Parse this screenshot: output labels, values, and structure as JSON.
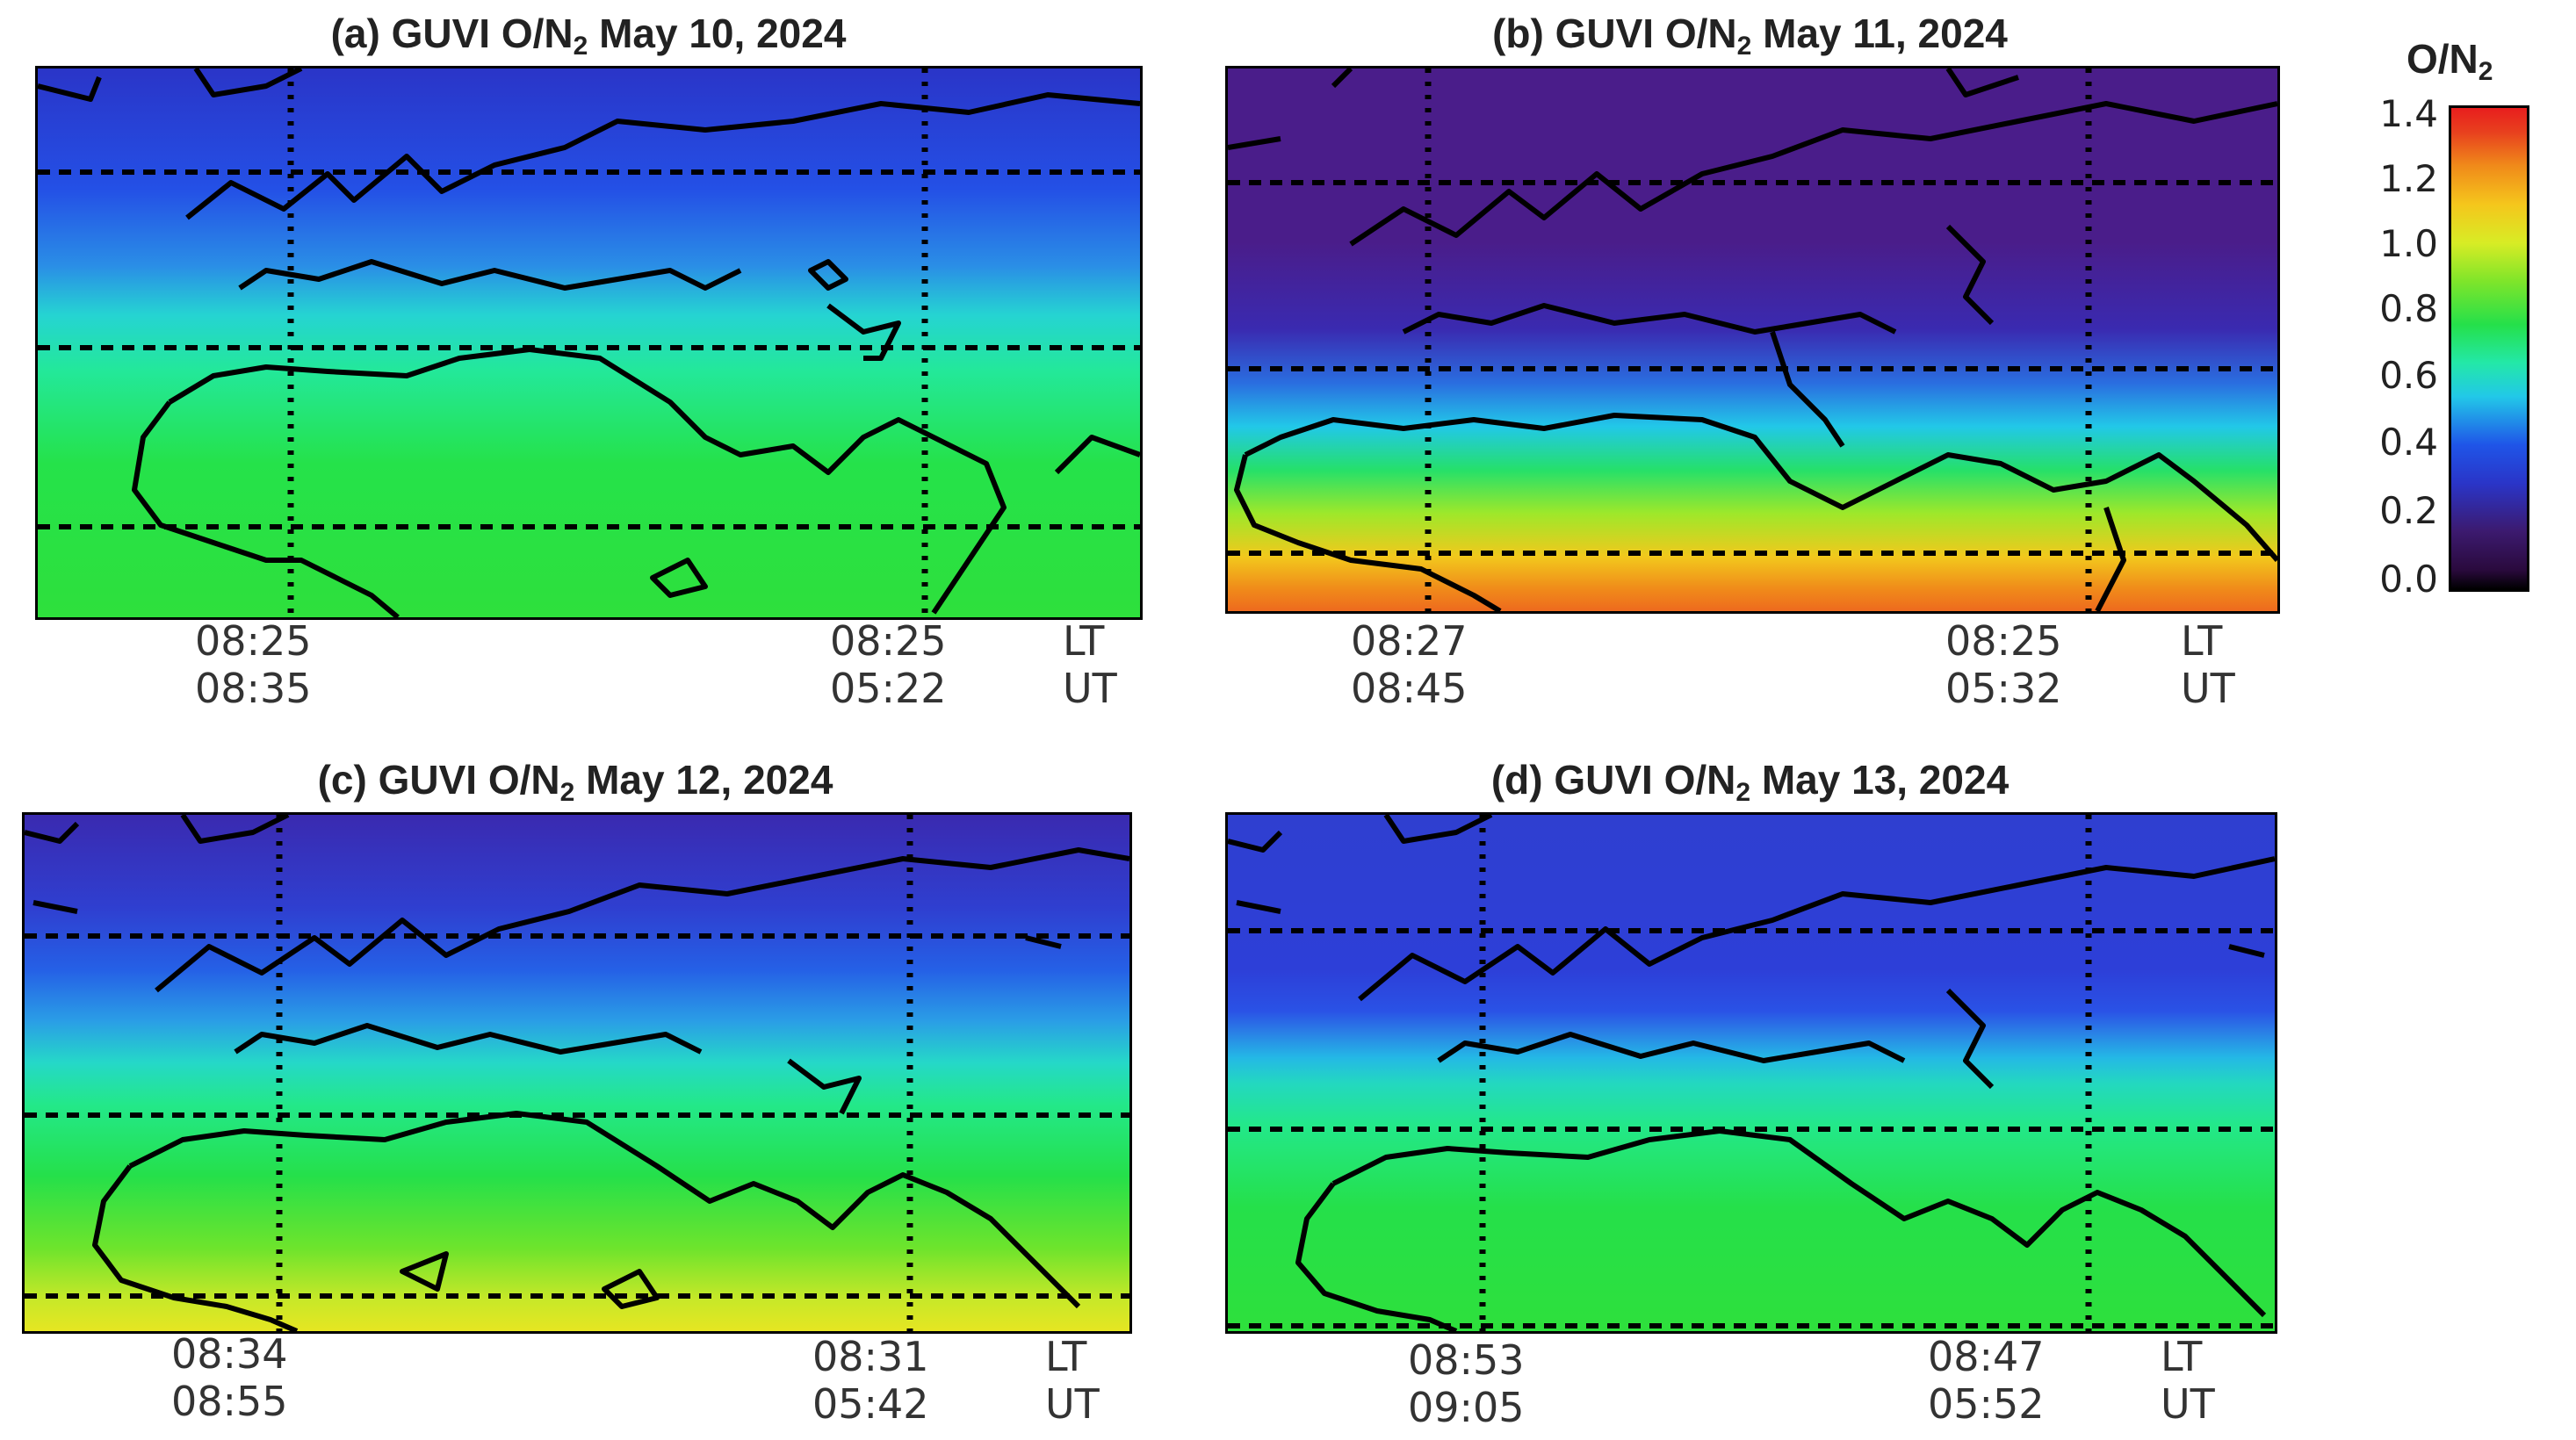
{
  "colorbar": {
    "title_main": "O/N",
    "title_sub": "2",
    "ticks": [
      "1.4",
      "1.2",
      "1.0",
      "0.8",
      "0.6",
      "0.4",
      "0.2",
      "0.0"
    ],
    "range": [
      0.0,
      1.4
    ],
    "colors": [
      "#000000",
      "#3c1a6f",
      "#1f55e8",
      "#22c8e8",
      "#25e04a",
      "#d8ec25",
      "#f08a1a",
      "#e81e1e"
    ]
  },
  "panels": [
    {
      "title_pre": "(a) GUVI  O/N",
      "title_sub": "2",
      "title_post": "  May 10, 2024",
      "left_lt": "08:25",
      "left_ut": "08:35",
      "right_lt": "08:25",
      "right_ut": "05:22",
      "lt_label": "LT",
      "ut_label": "UT"
    },
    {
      "title_pre": "(b) GUVI  O/N",
      "title_sub": "2",
      "title_post": "  May 11, 2024",
      "left_lt": "08:27",
      "left_ut": "08:45",
      "right_lt": "08:25",
      "right_ut": "05:32",
      "lt_label": "LT",
      "ut_label": "UT"
    },
    {
      "title_pre": "(c) GUVI  O/N",
      "title_sub": "2",
      "title_post": "  May 12, 2024",
      "left_lt": "08:34",
      "left_ut": "08:55",
      "right_lt": "08:31",
      "right_ut": "05:42",
      "lt_label": "LT",
      "ut_label": "UT"
    },
    {
      "title_pre": "(d) GUVI  O/N",
      "title_sub": "2",
      "title_post": "  May 13, 2024",
      "left_lt": "08:53",
      "left_ut": "09:05",
      "right_lt": "08:47",
      "right_ut": "05:52",
      "lt_label": "LT",
      "ut_label": "UT"
    }
  ]
}
